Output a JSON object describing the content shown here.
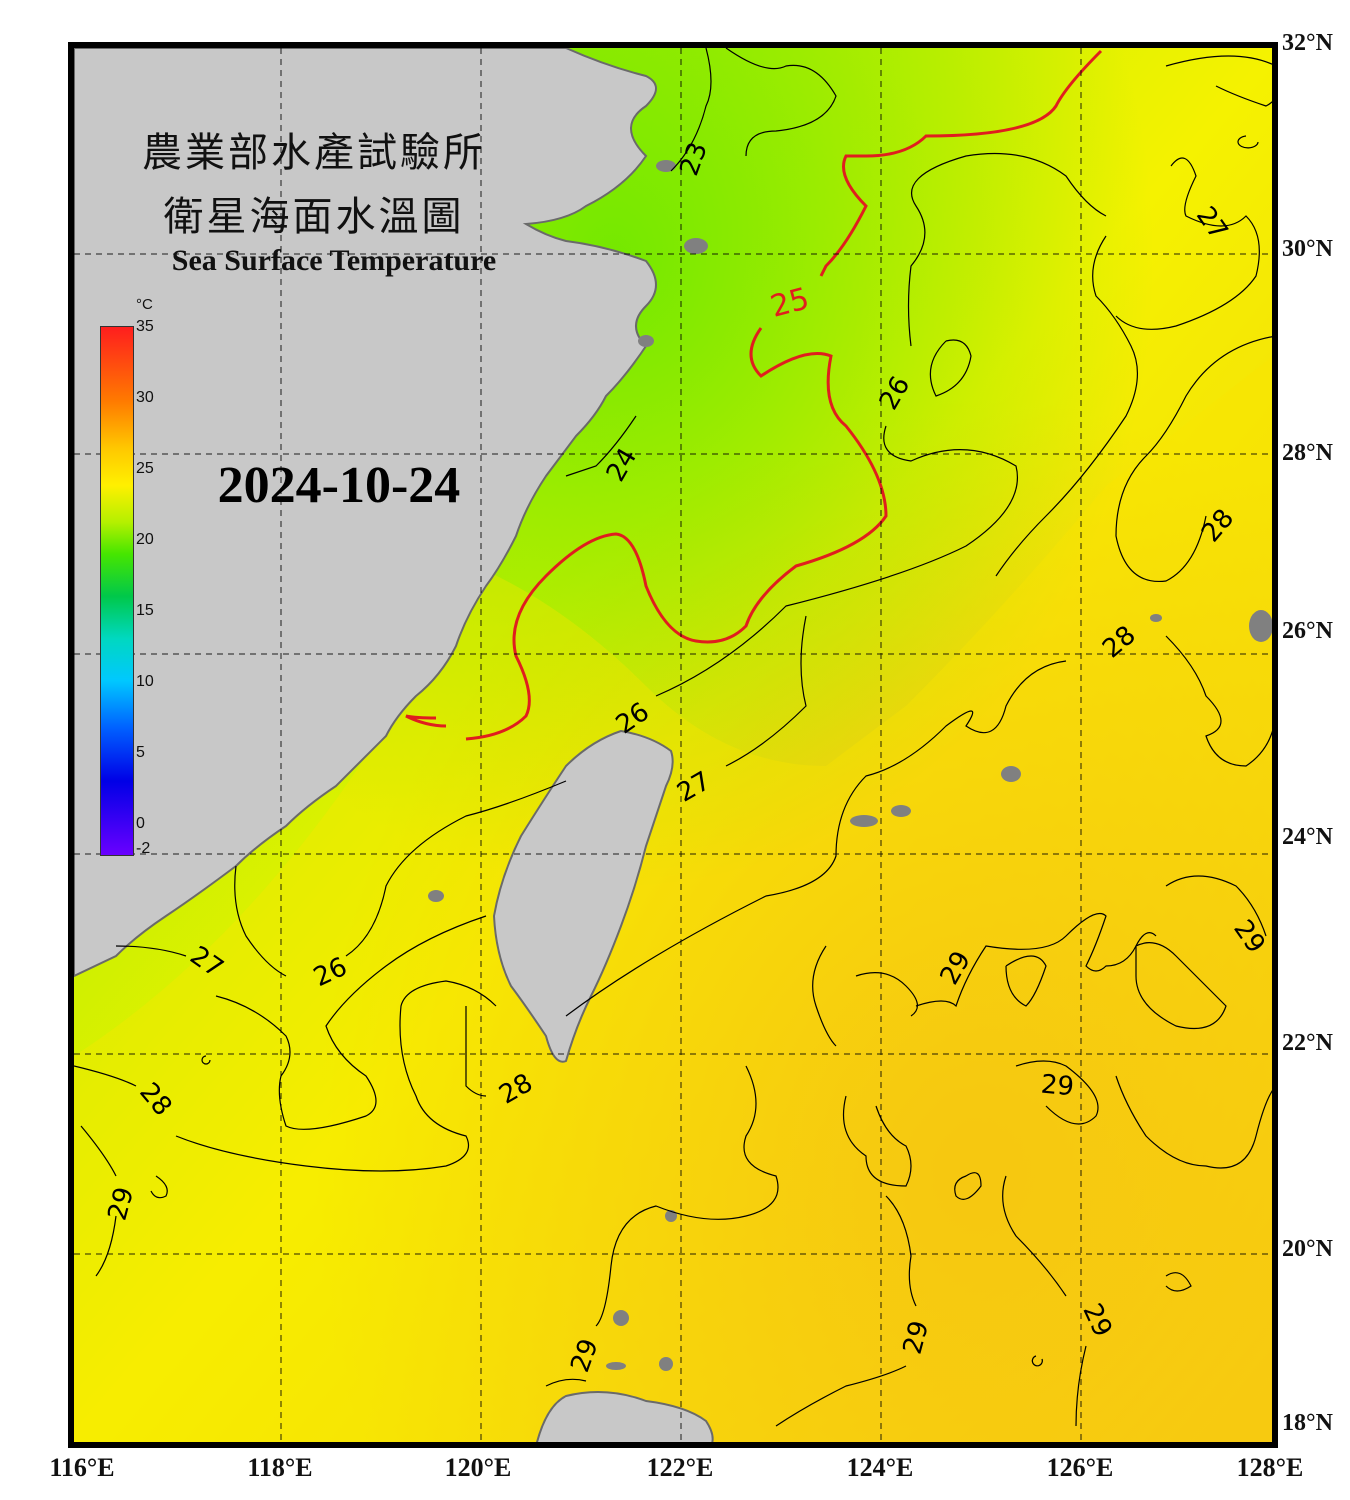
{
  "title": {
    "zh_line1": "農業部水產試驗所",
    "zh_line2": "衛星海面水溫圖",
    "en": "Sea Surface Temperature"
  },
  "date": "2024-10-24",
  "colorbar": {
    "unit": "°C",
    "ticks": [
      "35",
      "30",
      "25",
      "20",
      "15",
      "10",
      "5",
      "0",
      "-2"
    ],
    "range": [
      -2,
      35
    ]
  },
  "axes": {
    "lon_labels": [
      "116°E",
      "118°E",
      "120°E",
      "122°E",
      "124°E",
      "126°E",
      "128°E"
    ],
    "lat_labels": [
      "32°N",
      "30°N",
      "28°N",
      "26°N",
      "24°N",
      "22°N",
      "20°N",
      "18°N"
    ]
  },
  "contour_labels": [
    "23",
    "24",
    "25",
    "26",
    "26",
    "26",
    "27",
    "27",
    "27",
    "28",
    "28",
    "28",
    "28",
    "29",
    "29",
    "29",
    "29",
    "29",
    "29",
    "29"
  ],
  "colors": {
    "land": "#c8c8c8",
    "highlight_contour": "#e01e1e",
    "contour": "#000000"
  }
}
